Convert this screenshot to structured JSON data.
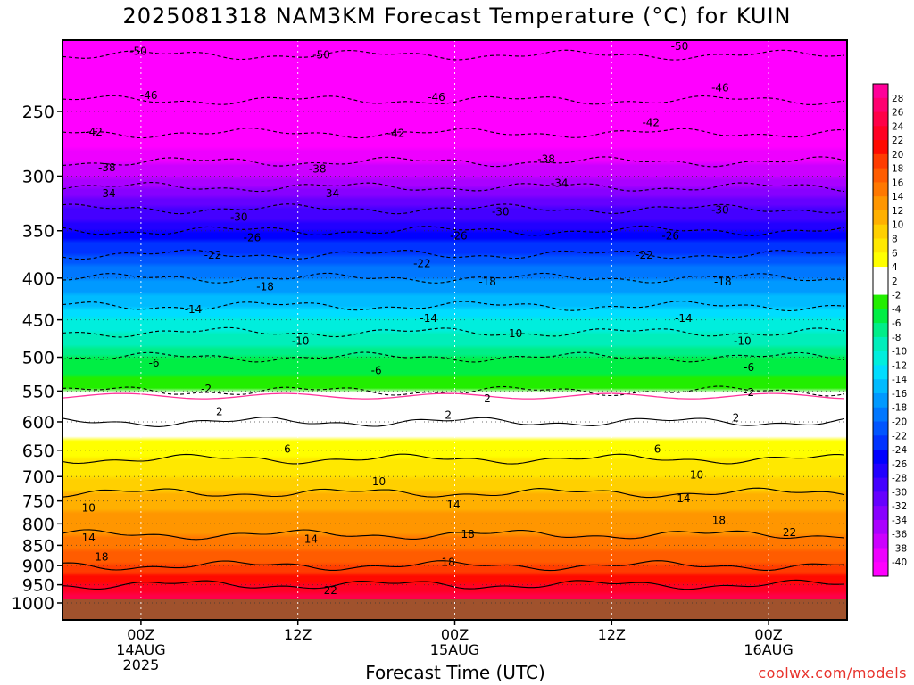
{
  "title": "2025081318 NAM3KM Forecast Temperature (°C) for KUIN",
  "credit": "coolwx.com/models",
  "chart_data": {
    "type": "heatmap",
    "title": "2025081318 NAM3KM Forecast Temperature (°C) for KUIN",
    "xlabel": "Forecast Time (UTC)",
    "ylabel": "",
    "y_axis": {
      "ticks": [
        250,
        300,
        350,
        400,
        450,
        500,
        550,
        600,
        650,
        700,
        750,
        800,
        850,
        900,
        950,
        1000
      ],
      "range": [
        1000,
        200
      ],
      "scale": "log-pressure"
    },
    "x_axis": {
      "ticks": [
        {
          "hour": 6,
          "lines": [
            "00Z",
            "14AUG",
            "2025"
          ]
        },
        {
          "hour": 18,
          "lines": [
            "12Z"
          ]
        },
        {
          "hour": 30,
          "lines": [
            "00Z",
            "15AUG"
          ]
        },
        {
          "hour": 42,
          "lines": [
            "12Z"
          ]
        },
        {
          "hour": 54,
          "lines": [
            "00Z",
            "16AUG"
          ]
        }
      ],
      "range": [
        0,
        60
      ]
    },
    "colorbar": {
      "labels": [
        28,
        26,
        24,
        22,
        20,
        18,
        16,
        14,
        12,
        10,
        8,
        6,
        4,
        2,
        -2,
        -4,
        -6,
        -8,
        -10,
        -12,
        -14,
        -16,
        -18,
        -20,
        -22,
        -24,
        -26,
        -28,
        -30,
        -32,
        -34,
        -36,
        -38,
        -40
      ],
      "colors": [
        "#ff0099",
        "#ff0070",
        "#ff0048",
        "#ff0024",
        "#ff0a00",
        "#ff3c00",
        "#ff5c00",
        "#ff7800",
        "#ff9600",
        "#ffb000",
        "#ffd000",
        "#ffe800",
        "#ffff00",
        "#ffffff",
        "#ffffff",
        "#22ee00",
        "#00ee44",
        "#00ee88",
        "#00eebb",
        "#00eedd",
        "#00ddff",
        "#00bbff",
        "#0099ff",
        "#0077ff",
        "#0055ff",
        "#0033ff",
        "#0000ff",
        "#2200ff",
        "#4400ff",
        "#6600ff",
        "#8800ff",
        "#aa00ff",
        "#cc00ff",
        "#ee00ff",
        "#ff00ff"
      ]
    },
    "temperature_profile": {
      "levels": [
        1000,
        950,
        900,
        850,
        800,
        750,
        700,
        650,
        600,
        550,
        500,
        450,
        400,
        350,
        300,
        250,
        200
      ],
      "values": [
        26,
        22,
        18,
        15,
        13,
        11,
        8,
        5,
        2,
        -2,
        -6,
        -12,
        -18,
        -26,
        -36,
        -45,
        -52
      ]
    },
    "contour_labels": [
      {
        "value": "-50",
        "hour": 5.8,
        "p": 211
      },
      {
        "value": "-50",
        "hour": 19.8,
        "p": 213
      },
      {
        "value": "-50",
        "hour": 47.2,
        "p": 208
      },
      {
        "value": "-46",
        "hour": 6.6,
        "p": 239
      },
      {
        "value": "-46",
        "hour": 28.6,
        "p": 240
      },
      {
        "value": "-46",
        "hour": 50.3,
        "p": 234
      },
      {
        "value": "-42",
        "hour": 2.4,
        "p": 265
      },
      {
        "value": "-42",
        "hour": 25.5,
        "p": 266
      },
      {
        "value": "-42",
        "hour": 45.0,
        "p": 258
      },
      {
        "value": "-38",
        "hour": 3.4,
        "p": 293
      },
      {
        "value": "-38",
        "hour": 19.5,
        "p": 294
      },
      {
        "value": "-38",
        "hour": 37.0,
        "p": 286
      },
      {
        "value": "-34",
        "hour": 3.4,
        "p": 315
      },
      {
        "value": "-34",
        "hour": 20.5,
        "p": 315
      },
      {
        "value": "-34",
        "hour": 38.0,
        "p": 306
      },
      {
        "value": "-30",
        "hour": 13.5,
        "p": 337
      },
      {
        "value": "-30",
        "hour": 33.5,
        "p": 332
      },
      {
        "value": "-30",
        "hour": 50.3,
        "p": 330
      },
      {
        "value": "-26",
        "hour": 14.5,
        "p": 357
      },
      {
        "value": "-26",
        "hour": 30.3,
        "p": 355
      },
      {
        "value": "-26",
        "hour": 46.5,
        "p": 355
      },
      {
        "value": "-22",
        "hour": 11.5,
        "p": 375
      },
      {
        "value": "-22",
        "hour": 27.5,
        "p": 384
      },
      {
        "value": "-22",
        "hour": 44.5,
        "p": 375
      },
      {
        "value": "-18",
        "hour": 15.5,
        "p": 410
      },
      {
        "value": "-18",
        "hour": 32.5,
        "p": 404
      },
      {
        "value": "-18",
        "hour": 50.5,
        "p": 404
      },
      {
        "value": "-14",
        "hour": 10.0,
        "p": 437
      },
      {
        "value": "-14",
        "hour": 28.0,
        "p": 448
      },
      {
        "value": "-14",
        "hour": 47.5,
        "p": 448
      },
      {
        "value": "-10",
        "hour": 18.2,
        "p": 478
      },
      {
        "value": "-10",
        "hour": 34.5,
        "p": 468
      },
      {
        "value": "-10",
        "hour": 52.0,
        "p": 478
      },
      {
        "value": "-6",
        "hour": 7.0,
        "p": 508
      },
      {
        "value": "-6",
        "hour": 24.0,
        "p": 519
      },
      {
        "value": "-6",
        "hour": 52.5,
        "p": 515
      },
      {
        "value": "-2",
        "hour": 11.0,
        "p": 547
      },
      {
        "value": "-2",
        "hour": 52.5,
        "p": 552
      },
      {
        "value": "2",
        "hour": 32.5,
        "p": 562
      },
      {
        "value": "2",
        "hour": 12.0,
        "p": 583
      },
      {
        "value": "2",
        "hour": 29.5,
        "p": 589
      },
      {
        "value": "2",
        "hour": 51.5,
        "p": 593
      },
      {
        "value": "6",
        "hour": 17.2,
        "p": 648
      },
      {
        "value": "6",
        "hour": 45.5,
        "p": 648
      },
      {
        "value": "10",
        "hour": 2.0,
        "p": 765
      },
      {
        "value": "10",
        "hour": 24.2,
        "p": 710
      },
      {
        "value": "10",
        "hour": 48.5,
        "p": 697
      },
      {
        "value": "14",
        "hour": 2.0,
        "p": 832
      },
      {
        "value": "14",
        "hour": 19.0,
        "p": 835
      },
      {
        "value": "14",
        "hour": 29.9,
        "p": 758
      },
      {
        "value": "14",
        "hour": 47.5,
        "p": 745
      },
      {
        "value": "18",
        "hour": 3.0,
        "p": 878
      },
      {
        "value": "18",
        "hour": 31.0,
        "p": 824
      },
      {
        "value": "18",
        "hour": 29.5,
        "p": 892
      },
      {
        "value": "18",
        "hour": 50.2,
        "p": 792
      },
      {
        "value": "22",
        "hour": 20.5,
        "p": 965
      },
      {
        "value": "22",
        "hour": 55.6,
        "p": 820
      }
    ],
    "ground_color": "#a0522d",
    "grid": true
  }
}
